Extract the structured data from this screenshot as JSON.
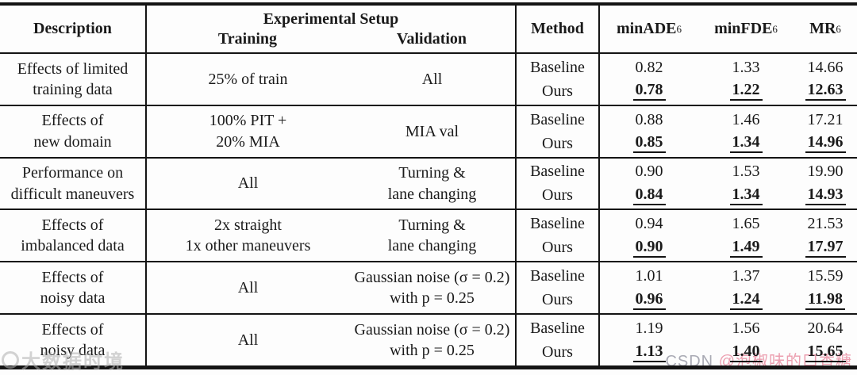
{
  "table": {
    "headers": {
      "description": "Description",
      "experimental_setup": "Experimental Setup",
      "training": "Training",
      "validation": "Validation",
      "method": "Method",
      "metrics": [
        {
          "label": "minADE",
          "sub": "6"
        },
        {
          "label": "minFDE",
          "sub": "6"
        },
        {
          "label": "MR",
          "sub": "6"
        }
      ]
    },
    "rows": [
      {
        "description": "Effects of limited\ntraining data",
        "training": "25% of train",
        "validation": "All",
        "methods": [
          "Baseline",
          "Ours"
        ],
        "minade": [
          "0.82",
          "0.78"
        ],
        "minfde": [
          "1.33",
          "1.22"
        ],
        "mr": [
          "14.66",
          "12.63"
        ]
      },
      {
        "description": "Effects of\nnew domain",
        "training": "100% PIT +\n20% MIA",
        "validation": "MIA val",
        "methods": [
          "Baseline",
          "Ours"
        ],
        "minade": [
          "0.88",
          "0.85"
        ],
        "minfde": [
          "1.46",
          "1.34"
        ],
        "mr": [
          "17.21",
          "14.96"
        ]
      },
      {
        "description": "Performance on\ndifficult maneuvers",
        "training": "All",
        "validation": "Turning &\nlane changing",
        "methods": [
          "Baseline",
          "Ours"
        ],
        "minade": [
          "0.90",
          "0.84"
        ],
        "minfde": [
          "1.53",
          "1.34"
        ],
        "mr": [
          "19.90",
          "14.93"
        ]
      },
      {
        "description": "Effects of\nimbalanced data",
        "training": "2x straight\n1x other maneuvers",
        "validation": "Turning &\nlane changing",
        "methods": [
          "Baseline",
          "Ours"
        ],
        "minade": [
          "0.94",
          "0.90"
        ],
        "minfde": [
          "1.65",
          "1.49"
        ],
        "mr": [
          "21.53",
          "17.97"
        ]
      },
      {
        "description": "Effects of\nnoisy data",
        "training": "All",
        "validation": "Gaussian noise (σ = 0.2)\nwith p = 0.25",
        "methods": [
          "Baseline",
          "Ours"
        ],
        "minade": [
          "1.01",
          "0.96"
        ],
        "minfde": [
          "1.37",
          "1.24"
        ],
        "mr": [
          "15.59",
          "11.98"
        ]
      },
      {
        "description": "Effects of\nnoisy data",
        "training": "All",
        "validation": "Gaussian noise (σ = 0.2)\nwith p = 0.25",
        "methods": [
          "Baseline",
          "Ours"
        ],
        "minade": [
          "1.19",
          "1.13"
        ],
        "minfde": [
          "1.56",
          "1.40"
        ],
        "mr": [
          "20.64",
          "15.65"
        ]
      }
    ]
  },
  "watermarks": {
    "left_text": "大数据时境",
    "right_prefix": "CSDN",
    "right_name": "@泡椒味的口香糖"
  },
  "colors": {
    "text": "#1a1a1a",
    "rule": "#141414",
    "watermark_pink": "#ec9fb0",
    "watermark_gray": "#a9aab4",
    "background": "#fdfdfd"
  }
}
